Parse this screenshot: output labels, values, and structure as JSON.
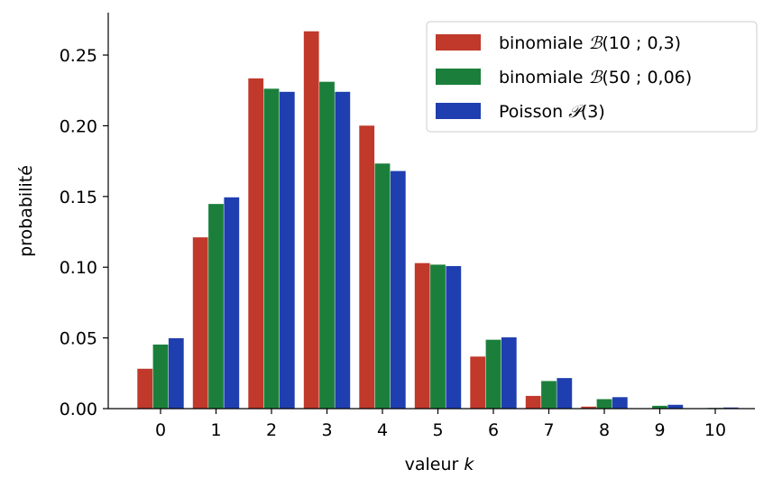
{
  "chart_data": {
    "type": "bar",
    "xlabel": "valeur",
    "xlabel_var": "k",
    "ylabel": "probabilité",
    "categories": [
      "0",
      "1",
      "2",
      "3",
      "4",
      "5",
      "6",
      "7",
      "8",
      "9",
      "10"
    ],
    "yticks": [
      "0.00",
      "0.05",
      "0.10",
      "0.15",
      "0.20",
      "0.25"
    ],
    "ylim": [
      0,
      0.28
    ],
    "grid": false,
    "legend_position": "top-right",
    "series": [
      {
        "name": "binomiale",
        "symbol": "ℬ",
        "params": "(10 ; 0,3)",
        "color": "#c0392b",
        "values": [
          0.0282,
          0.1211,
          0.2335,
          0.2668,
          0.2001,
          0.1029,
          0.0368,
          0.009,
          0.0014,
          0.0001,
          0.0
        ]
      },
      {
        "name": "binomiale",
        "symbol": "ℬ",
        "params": "(50 ; 0,06)",
        "color": "#1b7f3b",
        "values": [
          0.0453,
          0.1447,
          0.2262,
          0.2311,
          0.1733,
          0.1018,
          0.0487,
          0.0195,
          0.0067,
          0.002,
          0.0005
        ]
      },
      {
        "name": "Poisson",
        "symbol": "𝒫",
        "params": "(3)",
        "color": "#1f3fb0",
        "values": [
          0.0498,
          0.1494,
          0.224,
          0.224,
          0.168,
          0.1008,
          0.0504,
          0.0216,
          0.0081,
          0.0027,
          0.0008
        ]
      }
    ]
  }
}
